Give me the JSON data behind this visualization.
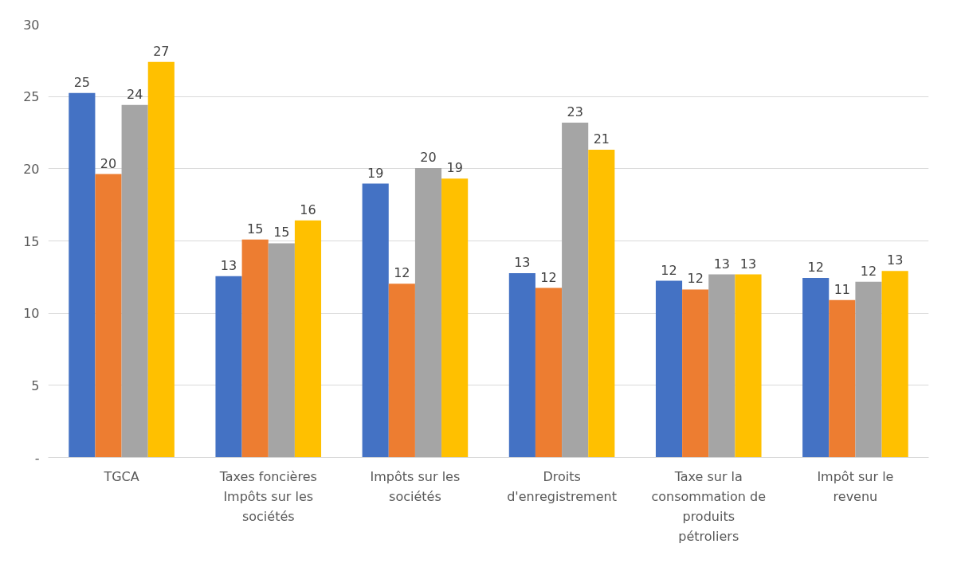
{
  "chart_data": {
    "type": "bar",
    "categories": [
      "TGCA",
      "Taxes foncières Impôts sur les sociétés",
      "Impôts sur les sociétés",
      "Droits d'enregistrement",
      "Taxe sur la consommation de produits pétroliers",
      "Impôt sur le revenu"
    ],
    "series": [
      {
        "color": "#4472c4",
        "values": [
          25.24,
          12.56,
          18.97,
          12.76,
          12.24,
          12.44
        ],
        "value_labels": [
          "25",
          "13",
          "19",
          "13",
          "12",
          "12"
        ]
      },
      {
        "color": "#ed7d31",
        "values": [
          19.63,
          15.1,
          12.04,
          11.74,
          11.64,
          10.9
        ],
        "value_labels": [
          "20",
          "15",
          "12",
          "12",
          "12",
          "11"
        ]
      },
      {
        "color": "#a5a5a5",
        "values": [
          24.41,
          14.84,
          20.05,
          23.19,
          12.68,
          12.18
        ],
        "value_labels": [
          "24",
          "15",
          "20",
          "23",
          "13",
          "12"
        ]
      },
      {
        "color": "#ffc000",
        "values": [
          27.4,
          16.42,
          19.31,
          21.31,
          12.68,
          12.92
        ],
        "value_labels": [
          "27",
          "16",
          "19",
          "21",
          "13",
          "13"
        ]
      }
    ],
    "ylim": [
      0,
      30
    ],
    "yticks": [
      {
        "value": 0,
        "label": "-"
      },
      5,
      10,
      15,
      20,
      25,
      30
    ],
    "grid": "y"
  }
}
